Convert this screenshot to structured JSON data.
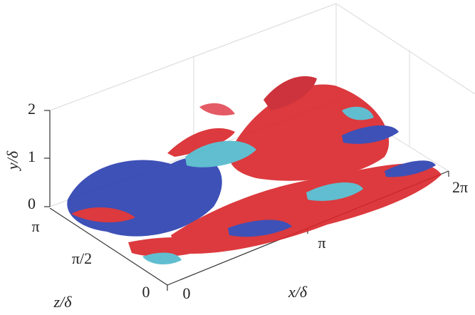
{
  "axes": {
    "y": {
      "label": "y/δ",
      "ticks": [
        "0",
        "1",
        "2"
      ]
    },
    "z": {
      "label": "z/δ",
      "ticks": [
        "0",
        "π/2",
        "π"
      ]
    },
    "x": {
      "label": "x/δ",
      "ticks": [
        "0",
        "π",
        "2π"
      ]
    }
  }
}
